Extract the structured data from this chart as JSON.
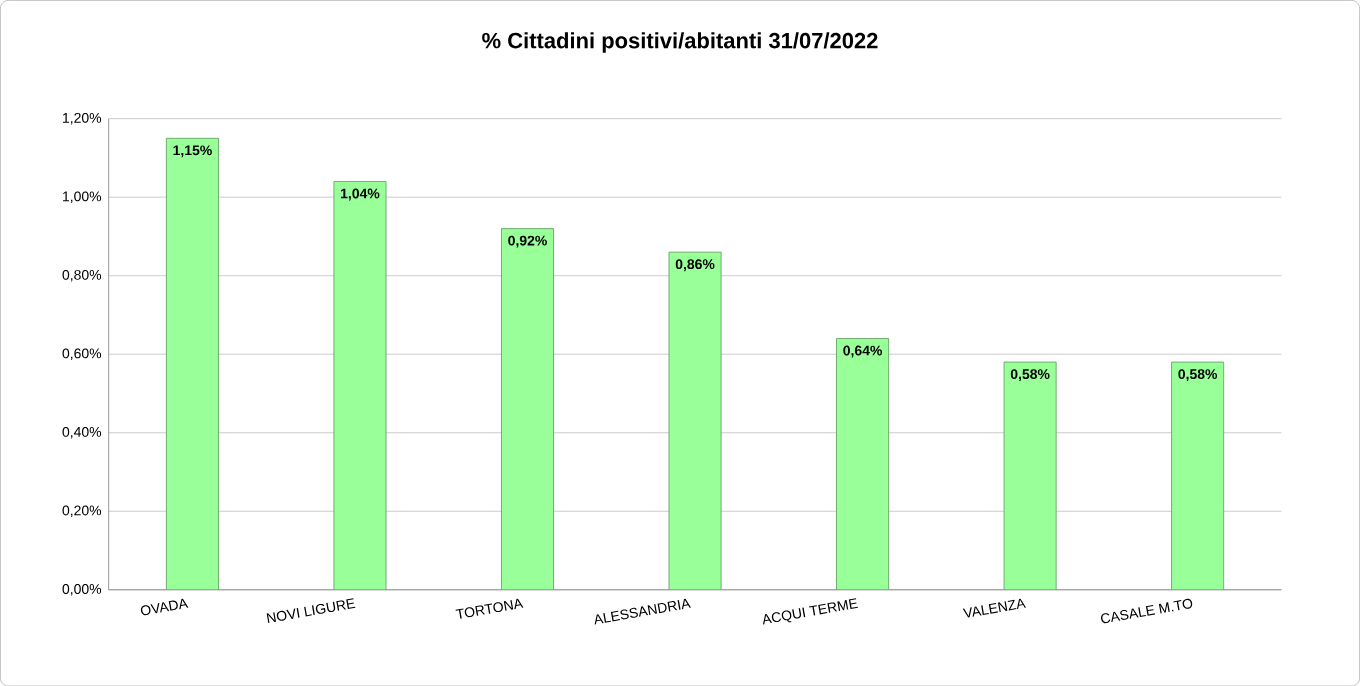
{
  "chart_data": {
    "type": "bar",
    "title": "% Cittadini positivi/abitanti 31/07/2022",
    "categories": [
      "OVADA",
      "NOVI LIGURE",
      "TORTONA",
      "ALESSANDRIA",
      "ACQUI TERME",
      "VALENZA",
      "CASALE M.TO"
    ],
    "values": [
      1.15,
      1.04,
      0.92,
      0.86,
      0.64,
      0.58,
      0.58
    ],
    "value_labels": [
      "1,15%",
      "1,04%",
      "0,92%",
      "0,86%",
      "0,64%",
      "0,58%",
      "0,58%"
    ],
    "color": "#99ff99",
    "ylim": [
      0,
      1.2
    ],
    "yticks": [
      {
        "value": 0,
        "label": "0,00%"
      },
      {
        "value": 0.2,
        "label": "0,20%"
      },
      {
        "value": 0.4,
        "label": "0,40%"
      },
      {
        "value": 0.6,
        "label": "0,60%"
      },
      {
        "value": 0.8,
        "label": "0,80%"
      },
      {
        "value": 1.0,
        "label": "1,00%"
      },
      {
        "value": 1.2,
        "label": "1,20%"
      }
    ],
    "grid": "y"
  }
}
